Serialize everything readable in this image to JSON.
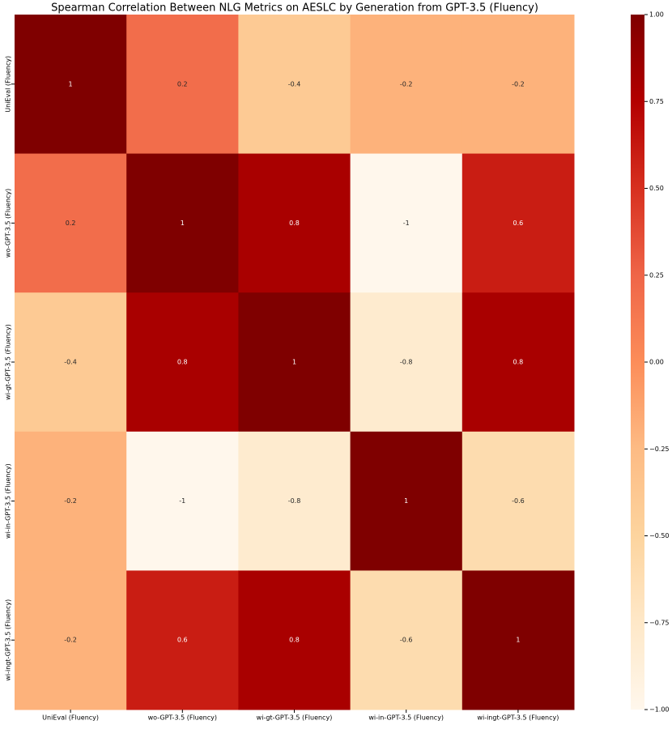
{
  "chart_data": {
    "type": "heatmap",
    "title": "Spearman Correlation Between NLG Metrics on AESLC by Generation from GPT-3.5 (Fluency)",
    "x": [
      "UniEval (Fluency)",
      "wo-GPT-3.5 (Fluency)",
      "wi-gt-GPT-3.5 (Fluency)",
      "wi-in-GPT-3.5 (Fluency)",
      "wi-ingt-GPT-3.5 (Fluency)"
    ],
    "y": [
      "UniEval (Fluency)",
      "wo-GPT-3.5 (Fluency)",
      "wi-gt-GPT-3.5 (Fluency)",
      "wi-in-GPT-3.5 (Fluency)",
      "wi-ingt-GPT-3.5 (Fluency)"
    ],
    "z": [
      [
        1,
        0.2,
        -0.4,
        -0.2,
        -0.2
      ],
      [
        0.2,
        1,
        0.8,
        -1,
        0.6
      ],
      [
        -0.4,
        0.8,
        1,
        -0.8,
        0.8
      ],
      [
        -0.2,
        -1,
        -0.8,
        1,
        -0.6
      ],
      [
        -0.2,
        0.6,
        0.8,
        -0.6,
        1
      ]
    ],
    "colorscale": [
      "#fff7ec",
      "#fee8c8",
      "#fdd49e",
      "#fdbb84",
      "#fc8d59",
      "#ef6548",
      "#d7301f",
      "#b30000",
      "#7f0000"
    ],
    "zlim": [
      -1,
      1
    ],
    "zticks": [
      {
        "value": 1,
        "label": "1.00"
      },
      {
        "value": 0.75,
        "label": "0.75"
      },
      {
        "value": 0.5,
        "label": "0.50"
      },
      {
        "value": 0.25,
        "label": "0.25"
      },
      {
        "value": 0,
        "label": "0.00"
      },
      {
        "value": -0.25,
        "label": "−0.25"
      },
      {
        "value": -0.5,
        "label": "−0.50"
      },
      {
        "value": -0.75,
        "label": "−0.75"
      },
      {
        "value": -1,
        "label": "−1.00"
      }
    ]
  }
}
